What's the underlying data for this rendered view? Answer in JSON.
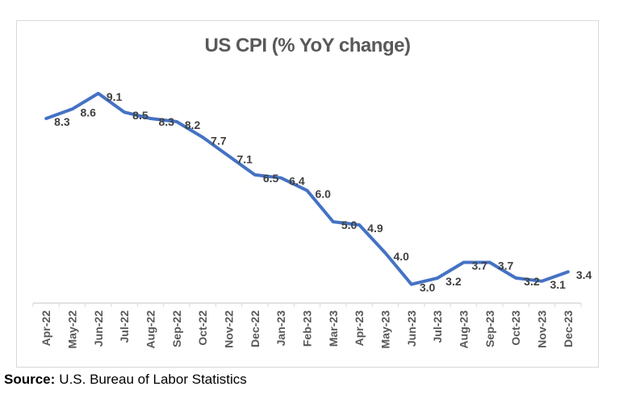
{
  "source": {
    "label": "Source:",
    "text": "U.S. Bureau of Labor Statistics"
  },
  "colors": {
    "line": "#4472C4",
    "axis": "#D9D9D9",
    "tick": "#D9D9D9",
    "frame_border": "#D9D9D9",
    "data_label": "#404040",
    "axis_label": "#595959",
    "title": "#595959",
    "source_text": "#000000",
    "background": "#FFFFFF"
  },
  "chart_data": {
    "type": "line",
    "title": "US CPI (% YoY change)",
    "categories": [
      "Apr-22",
      "May-22",
      "Jun-22",
      "Jul-22",
      "Aug-22",
      "Sep-22",
      "Oct-22",
      "Nov-22",
      "Dec-22",
      "Jan-23",
      "Feb-23",
      "Mar-23",
      "Apr-23",
      "May-23",
      "Jun-23",
      "Jul-23",
      "Aug-23",
      "Sep-23",
      "Oct-23",
      "Nov-23",
      "Dec-23"
    ],
    "values": [
      8.3,
      8.6,
      9.1,
      8.5,
      8.3,
      8.2,
      7.7,
      7.1,
      6.5,
      6.4,
      6.0,
      5.0,
      4.9,
      4.0,
      3.0,
      3.2,
      3.7,
      3.7,
      3.2,
      3.1,
      3.4
    ],
    "xlabel": "",
    "ylabel": "",
    "ylim": [
      2.4,
      10
    ],
    "y_axis_visible": false,
    "x_labels_rotated_deg": -90,
    "grid": false,
    "legend": "none",
    "data_labels": true,
    "data_label_position": "right",
    "value_decimals": 1
  }
}
